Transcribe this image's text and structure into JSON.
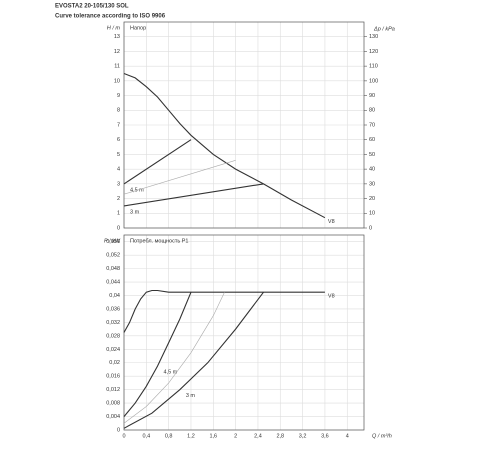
{
  "title": "EVOSTA2 20-105/130 SOL",
  "subtitle": "Curve tolerance according to ISO 9906",
  "chart_data": [
    {
      "type": "line",
      "ylabel": "H / m",
      "y2label": "Δp / kPa",
      "annotation": "Напор",
      "grid": true,
      "xlim": [
        0,
        4.3
      ],
      "xticks": [
        0,
        0.4,
        0.8,
        1.2,
        1.6,
        2,
        2.4,
        2.8,
        3.2,
        3.6,
        4
      ],
      "ylim": [
        0,
        14
      ],
      "yticks": [
        0,
        1,
        2,
        3,
        4,
        5,
        6,
        7,
        8,
        9,
        10,
        11,
        12,
        13
      ],
      "y2lim": [
        0,
        140
      ],
      "y2ticks": [
        0,
        10,
        20,
        30,
        40,
        50,
        60,
        70,
        80,
        90,
        100,
        110,
        120,
        130
      ],
      "series": [
        {
          "name": "V8",
          "color": "#333333",
          "x": [
            0,
            0.2,
            0.4,
            0.6,
            0.8,
            1.0,
            1.2,
            1.6,
            2.0,
            2.5,
            3.0,
            3.6
          ],
          "values": [
            10.5,
            10.2,
            9.6,
            8.9,
            8.0,
            7.1,
            6.3,
            5.0,
            4.0,
            3.0,
            1.9,
            0.7
          ]
        },
        {
          "name": "4,5 m",
          "color": "#333333",
          "x": [
            0,
            1.2
          ],
          "values": [
            3,
            6
          ]
        },
        {
          "color": "#aaaaaa",
          "x": [
            0,
            2.0
          ],
          "values": [
            2.3,
            4.6
          ]
        },
        {
          "name": "3 m",
          "color": "#333333",
          "x": [
            0,
            2.5
          ],
          "values": [
            1.5,
            3
          ]
        }
      ]
    },
    {
      "type": "line",
      "ylabel": "P / kW",
      "xlabel": "Q / m³/h",
      "annotation": "Потребл. мощность P1",
      "grid": true,
      "x_tick_labels": true,
      "xlim": [
        0,
        4.3
      ],
      "xticks": [
        0,
        {
          "value": 0.4,
          "label": "0,4"
        },
        {
          "value": 0.8,
          "label": "0,8"
        },
        {
          "value": 1.2,
          "label": "1,2"
        },
        {
          "value": 1.6,
          "label": "1,6"
        },
        2,
        {
          "value": 2.4,
          "label": "2,4"
        },
        {
          "value": 2.8,
          "label": "2,8"
        },
        {
          "value": 3.2,
          "label": "3,2"
        },
        {
          "value": 3.6,
          "label": "3,6"
        },
        4
      ],
      "ylim": [
        0,
        0.058
      ],
      "yticks": [
        0,
        {
          "value": 0.004,
          "label": "0,004"
        },
        {
          "value": 0.008,
          "label": "0,008"
        },
        {
          "value": 0.012,
          "label": "0,012"
        },
        {
          "value": 0.016,
          "label": "0,016"
        },
        {
          "value": 0.02,
          "label": "0,02"
        },
        {
          "value": 0.024,
          "label": "0,024"
        },
        {
          "value": 0.028,
          "label": "0,028"
        },
        {
          "value": 0.032,
          "label": "0,032"
        },
        {
          "value": 0.036,
          "label": "0,036"
        },
        {
          "value": 0.04,
          "label": "0,04"
        },
        {
          "value": 0.044,
          "label": "0,044"
        },
        {
          "value": 0.048,
          "label": "0,048"
        },
        {
          "value": 0.052,
          "label": "0,052"
        },
        {
          "value": 0.056,
          "label": "0,056"
        }
      ],
      "series": [
        {
          "name": "V8",
          "color": "#333333",
          "x": [
            0,
            0.1,
            0.2,
            0.3,
            0.4,
            0.5,
            0.6,
            0.8,
            1.0,
            1.2,
            1.6,
            2.0,
            2.4,
            2.8,
            3.2,
            3.6
          ],
          "values": [
            0.029,
            0.032,
            0.036,
            0.039,
            0.041,
            0.0415,
            0.0415,
            0.041,
            0.041,
            0.041,
            0.041,
            0.041,
            0.041,
            0.041,
            0.041,
            0.041
          ]
        },
        {
          "name": "4,5 m",
          "color": "#333333",
          "x": [
            0,
            0.2,
            0.4,
            0.6,
            0.8,
            1.0,
            1.2
          ],
          "values": [
            0.004,
            0.008,
            0.013,
            0.019,
            0.026,
            0.033,
            0.041
          ]
        },
        {
          "color": "#aaaaaa",
          "x": [
            0,
            0.4,
            0.8,
            1.2,
            1.6,
            1.8
          ],
          "values": [
            0.002,
            0.007,
            0.014,
            0.023,
            0.034,
            0.041
          ]
        },
        {
          "name": "3 m",
          "color": "#333333",
          "x": [
            0,
            0.5,
            1.0,
            1.5,
            2.0,
            2.5
          ],
          "values": [
            0.0005,
            0.005,
            0.012,
            0.02,
            0.03,
            0.041
          ]
        }
      ]
    }
  ]
}
